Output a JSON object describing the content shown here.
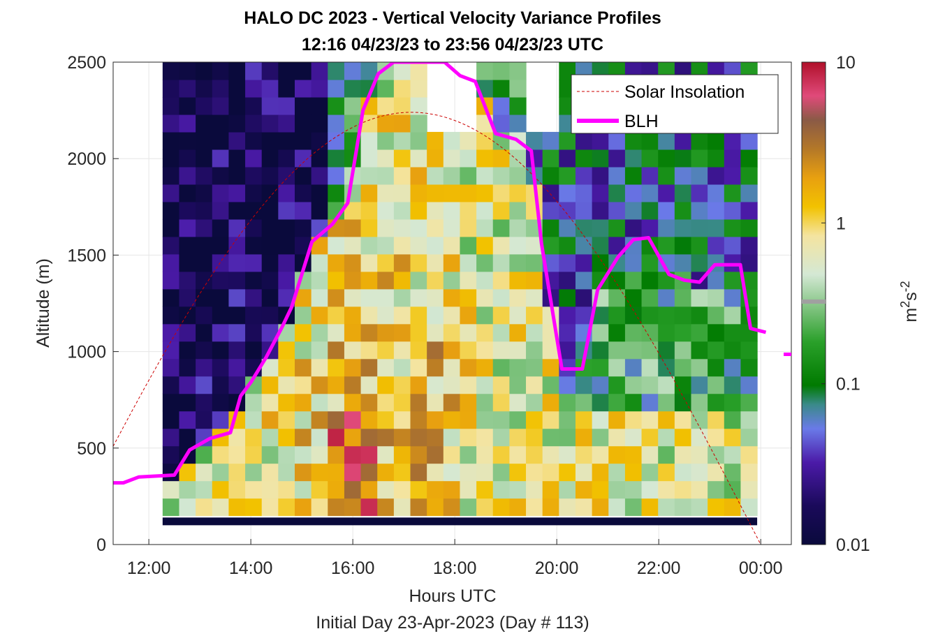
{
  "chart_data": {
    "type": "heatmap",
    "title": "HALO DC 2023 - Vertical Velocity Variance Profiles",
    "subtitle": "12:16 04/23/23 to 23:56 04/23/23  UTC",
    "xlabel": "Hours UTC",
    "xlabel2": "Initial Day 23-Apr-2023 (Day # 113)",
    "ylabel": "Altitude (m)",
    "x_range_hours": [
      11.3,
      24.6
    ],
    "xticks": [
      12,
      14,
      16,
      18,
      20,
      22,
      24
    ],
    "xtick_labels": [
      "12:00",
      "14:00",
      "16:00",
      "18:00",
      "20:00",
      "22:00",
      "00:00"
    ],
    "ylim": [
      0,
      2500
    ],
    "yticks": [
      0,
      500,
      1000,
      1500,
      2000,
      2500
    ],
    "ytick_labels": [
      "0",
      "500",
      "1000",
      "1500",
      "2000",
      "2500"
    ],
    "grid": true,
    "colorbar": {
      "scale": "log",
      "range": [
        0.01,
        10
      ],
      "ticks": [
        "0.01",
        "0.1",
        "1",
        "10"
      ],
      "tick_values": [
        0.01,
        0.1,
        1,
        10
      ],
      "label": "m2s-2",
      "label_base": "m",
      "label_sup1": "2",
      "label_mid": "s",
      "label_sup2": "-2"
    },
    "legend": {
      "placement": "top-right",
      "entries": [
        "Solar Insolation",
        "BLH"
      ]
    },
    "series": [
      {
        "name": "BLH",
        "color": "#ff00ff",
        "x": [
          11.3,
          11.5,
          11.8,
          12.5,
          12.8,
          13.2,
          13.6,
          13.8,
          14.0,
          14.3,
          14.6,
          14.8,
          15.2,
          15.6,
          15.9,
          16.2,
          16.5,
          16.8,
          17.0,
          17.8,
          18.1,
          18.4,
          18.8,
          19.2,
          19.5,
          19.7,
          20.1,
          20.5,
          20.8,
          21.2,
          21.5,
          21.8,
          22.2,
          22.5,
          22.8,
          23.1,
          23.6,
          23.8,
          24.1
        ],
        "y": [
          320,
          320,
          350,
          360,
          490,
          550,
          580,
          770,
          840,
          970,
          1120,
          1230,
          1570,
          1660,
          1770,
          2250,
          2440,
          2500,
          2500,
          2500,
          2430,
          2400,
          2130,
          2100,
          2040,
          1560,
          910,
          910,
          1320,
          1490,
          1580,
          1590,
          1400,
          1370,
          1360,
          1450,
          1450,
          1120,
          1100
        ]
      },
      {
        "name": "Solar Insolation",
        "color": "#cc0000",
        "peak_hour": 17.15,
        "peak_altitude": 2240,
        "zero_after_hour": 24.0
      }
    ],
    "heatmap": {
      "time_range_hours": [
        12.27,
        23.93
      ],
      "altitude_range": [
        150,
        2500
      ],
      "columns": 36,
      "rows": 26,
      "near_ground_band": [
        100,
        140
      ],
      "near_ground_value": 0.01,
      "units": "m^2 s^-2",
      "description_values": "variance peaks (~2-5) near 15.5-16.5 h below 700 m"
    }
  }
}
